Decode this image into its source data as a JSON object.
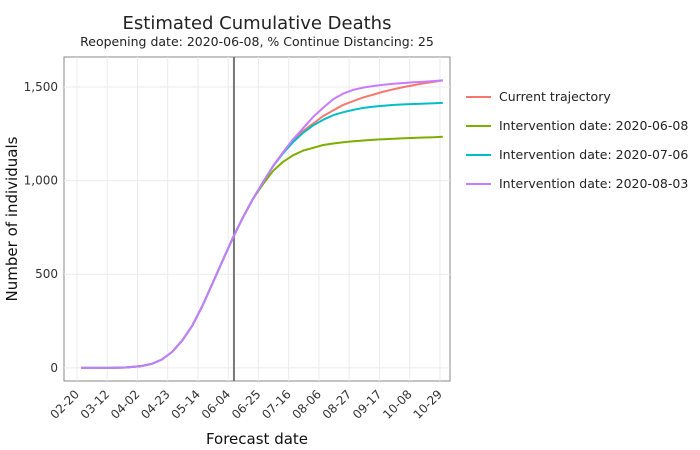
{
  "chart_data": {
    "type": "line",
    "title": "Estimated Cumulative Deaths",
    "subtitle": "Reopening date: 2020-06-08, % Continue Distancing: 25",
    "xlabel": "Forecast date",
    "ylabel": "Number of individuals",
    "x_ticks": [
      "02-20",
      "03-12",
      "04-02",
      "04-23",
      "05-14",
      "06-04",
      "06-25",
      "07-16",
      "08-06",
      "08-27",
      "09-17",
      "10-08",
      "10-29"
    ],
    "y_ticks": [
      "0",
      "500",
      "1,000",
      "1,500"
    ],
    "ylim": [
      -70,
      1660
    ],
    "xlim": [
      "2020-02-11",
      "2020-11-05"
    ],
    "vline": "2020-06-08",
    "grid": true,
    "legend_position": "right",
    "x": [
      "2020-02-23",
      "2020-03-05",
      "2020-03-15",
      "2020-03-25",
      "2020-04-05",
      "2020-04-12",
      "2020-04-19",
      "2020-04-26",
      "2020-05-03",
      "2020-05-10",
      "2020-05-17",
      "2020-05-24",
      "2020-05-31",
      "2020-06-07",
      "2020-06-14",
      "2020-06-21",
      "2020-06-28",
      "2020-07-05",
      "2020-07-12",
      "2020-07-19",
      "2020-07-26",
      "2020-08-02",
      "2020-08-09",
      "2020-08-16",
      "2020-08-23",
      "2020-08-30",
      "2020-09-06",
      "2020-09-13",
      "2020-09-20",
      "2020-09-27",
      "2020-10-04",
      "2020-10-11",
      "2020-10-18",
      "2020-10-25",
      "2020-10-31"
    ],
    "series": [
      {
        "name": "Current trajectory",
        "color": "#f8766d",
        "values": [
          0,
          0,
          0,
          2,
          10,
          22,
          45,
          85,
          145,
          225,
          330,
          450,
          570,
          690,
          800,
          900,
          990,
          1075,
          1150,
          1215,
          1265,
          1305,
          1345,
          1375,
          1405,
          1425,
          1445,
          1460,
          1475,
          1488,
          1500,
          1510,
          1520,
          1528,
          1535
        ]
      },
      {
        "name": "Intervention date: 2020-06-08",
        "color": "#7cae00",
        "values": [
          0,
          0,
          0,
          2,
          10,
          22,
          45,
          85,
          145,
          225,
          330,
          450,
          570,
          690,
          800,
          900,
          980,
          1050,
          1100,
          1135,
          1160,
          1175,
          1190,
          1198,
          1205,
          1210,
          1214,
          1218,
          1221,
          1224,
          1226,
          1228,
          1230,
          1232,
          1234
        ]
      },
      {
        "name": "Intervention date: 2020-07-06",
        "color": "#00bfc4",
        "values": [
          0,
          0,
          0,
          2,
          10,
          22,
          45,
          85,
          145,
          225,
          330,
          450,
          570,
          690,
          800,
          900,
          990,
          1075,
          1145,
          1205,
          1255,
          1295,
          1325,
          1350,
          1365,
          1378,
          1388,
          1395,
          1400,
          1404,
          1407,
          1409,
          1411,
          1413,
          1415
        ]
      },
      {
        "name": "Intervention date: 2020-08-03",
        "color": "#c77cff",
        "values": [
          0,
          0,
          0,
          2,
          10,
          22,
          45,
          85,
          145,
          225,
          330,
          450,
          570,
          690,
          800,
          900,
          990,
          1075,
          1150,
          1220,
          1280,
          1340,
          1390,
          1435,
          1465,
          1485,
          1497,
          1505,
          1512,
          1517,
          1521,
          1525,
          1528,
          1532,
          1535
        ]
      }
    ]
  }
}
